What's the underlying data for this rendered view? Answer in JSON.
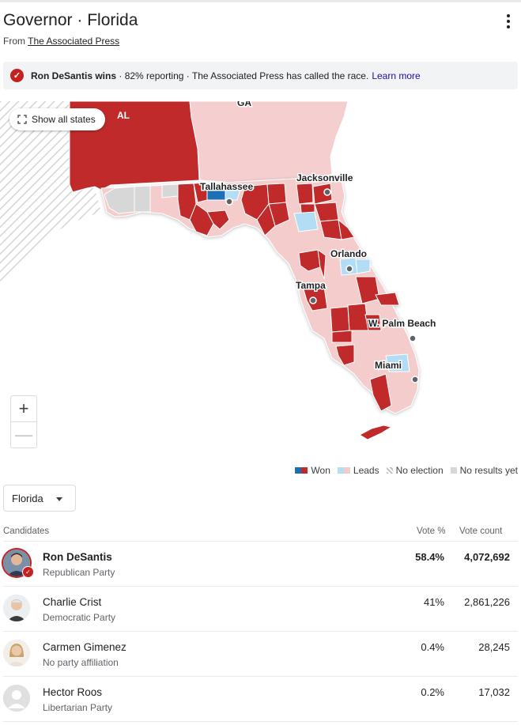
{
  "header": {
    "title": "Governor · Florida",
    "source_prefix": "From ",
    "source_name": "The Associated Press"
  },
  "banner": {
    "winner_text": "Ron DeSantis wins",
    "detail": "· 82% reporting · The Associated Press has called the race.",
    "learn_more": "Learn more"
  },
  "map": {
    "show_all_states": "Show all states",
    "state_labels": [
      "AL",
      "GA"
    ],
    "cities": [
      "Tallahassee",
      "Jacksonville",
      "Orlando",
      "Tampa",
      "W. Palm Beach",
      "Miami"
    ],
    "zoom_in": "+",
    "zoom_out": "—"
  },
  "legend": {
    "won": "Won",
    "leads": "Leads",
    "no_election": "No election",
    "no_results": "No results yet"
  },
  "colors": {
    "rep_won": "#c12a2a",
    "rep_leads": "#f4cccc",
    "dem_won": "#1a6fb3",
    "dem_leads": "#b3dcf5",
    "no_results": "#d7d7d7",
    "ga_fill": "#f5cfd0"
  },
  "region_selector": {
    "value": "Florida"
  },
  "table": {
    "headers": {
      "candidates": "Candidates",
      "vote_pct": "Vote %",
      "vote_count": "Vote count"
    },
    "rows": [
      {
        "name": "Ron DeSantis",
        "party": "Republican Party",
        "pct": "58.4%",
        "count": "4,072,692",
        "winner": true
      },
      {
        "name": "Charlie Crist",
        "party": "Democratic Party",
        "pct": "41%",
        "count": "2,861,226",
        "winner": false
      },
      {
        "name": "Carmen Gimenez",
        "party": "No party affiliation",
        "pct": "0.4%",
        "count": "28,245",
        "winner": false
      },
      {
        "name": "Hector Roos",
        "party": "Libertarian Party",
        "pct": "0.2%",
        "count": "17,032",
        "winner": false
      }
    ]
  }
}
